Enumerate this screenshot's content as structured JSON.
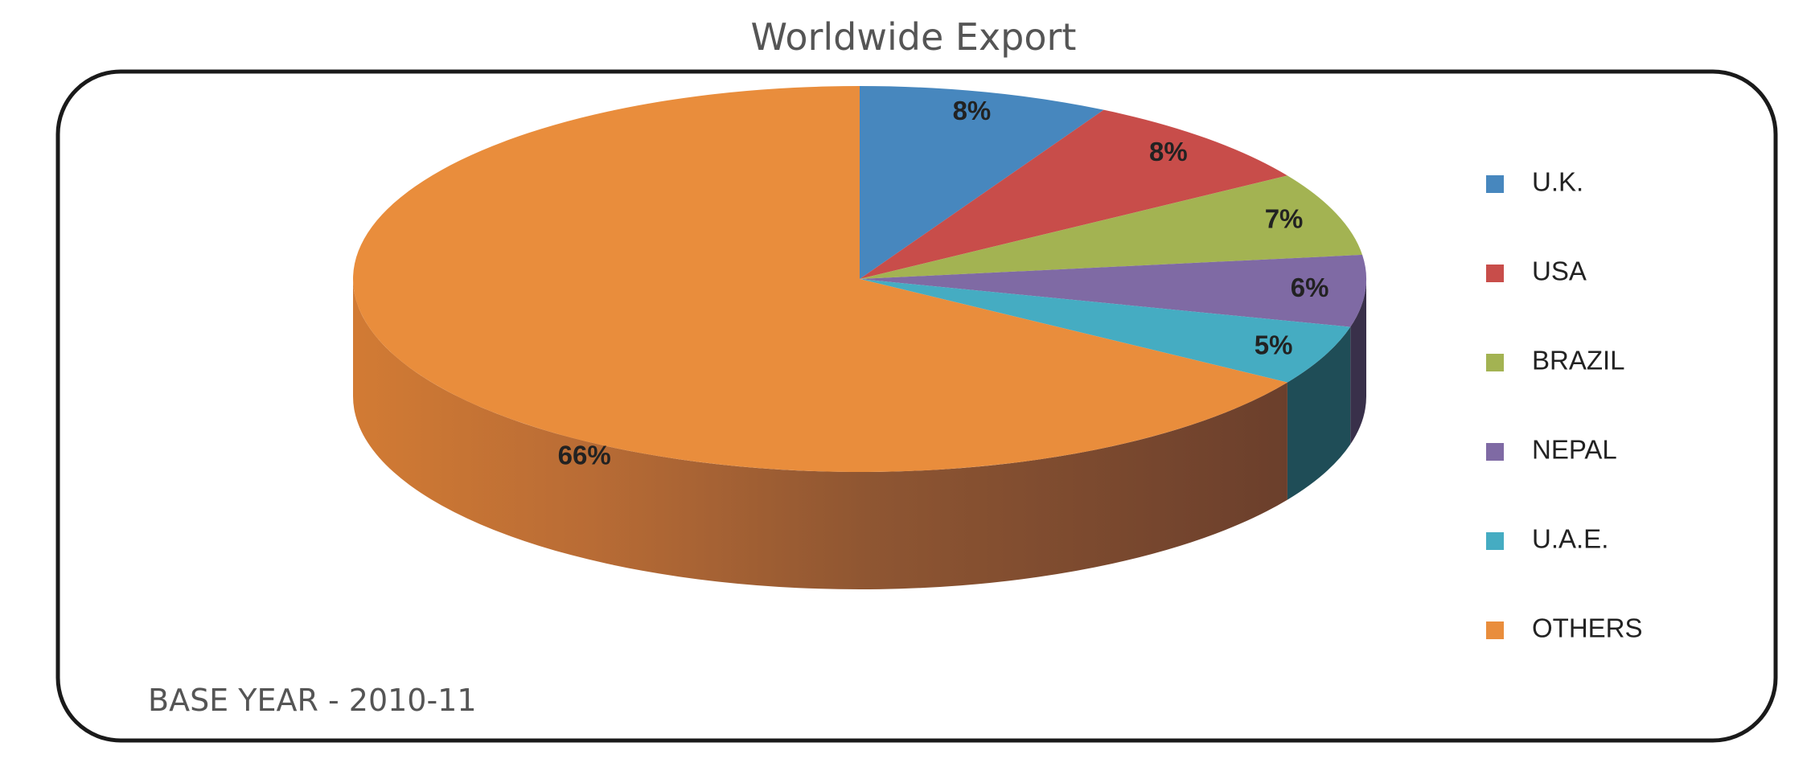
{
  "chart_data": {
    "type": "pie",
    "title": "Worldwide Export",
    "footnote": "BASE YEAR - 2010-11",
    "categories": [
      "U.K.",
      "USA",
      "BRAZIL",
      "NEPAL",
      "U.A.E.",
      "OTHERS"
    ],
    "values": [
      8,
      8,
      7,
      6,
      5,
      66
    ],
    "labels": [
      "8%",
      "8%",
      "7%",
      "6%",
      "5%",
      "66%"
    ],
    "colors": [
      "#4787be",
      "#c84d4a",
      "#a3b352",
      "#7f6aa4",
      "#45acc2",
      "#e98d3c"
    ],
    "legend_position": "right",
    "style": "3d"
  }
}
